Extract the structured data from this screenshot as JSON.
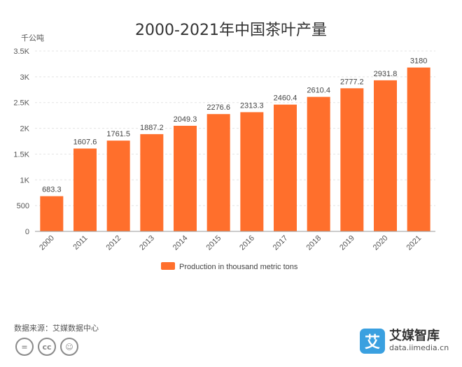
{
  "chart_data": {
    "type": "bar",
    "title": "2000-2021年中国茶叶产量",
    "unit_label": "千公吨",
    "categories": [
      "2000",
      "2011",
      "2012",
      "2013",
      "2014",
      "2015",
      "2016",
      "2017",
      "2018",
      "2019",
      "2020",
      "2021"
    ],
    "series": [
      {
        "name": "Production in thousand metric tons",
        "color": "#ff6f2c",
        "values": [
          683.3,
          1607.6,
          1761.5,
          1887.2,
          2049.3,
          2276.6,
          2313.3,
          2460.4,
          2610.4,
          2777.2,
          2931.8,
          3180
        ]
      }
    ],
    "data_labels": [
      "683.3",
      "1607.6",
      "1761.5",
      "1887.2",
      "2049.3",
      "2276.6",
      "2313.3",
      "2460.4",
      "2610.4",
      "2777.2",
      "2931.8",
      "3180"
    ],
    "ylim": [
      0,
      3500
    ],
    "yticks": [
      0,
      500,
      1000,
      1500,
      2000,
      2500,
      3000,
      3500
    ],
    "ytick_labels": [
      "0",
      "500",
      "1K",
      "1.5K",
      "2K",
      "2.5K",
      "3K",
      "3.5K"
    ],
    "grid": true,
    "legend_position": "bottom"
  },
  "footer": {
    "source": "数据来源：艾媒数据中心",
    "cc_icons": [
      "equals-icon",
      "cc-icon",
      "person-icon"
    ],
    "cc_glyphs": [
      "=",
      "cc",
      "☺"
    ],
    "brand_logo_char": "艾",
    "brand_name": "艾媒智库",
    "brand_url": "data.iimedia.cn"
  }
}
